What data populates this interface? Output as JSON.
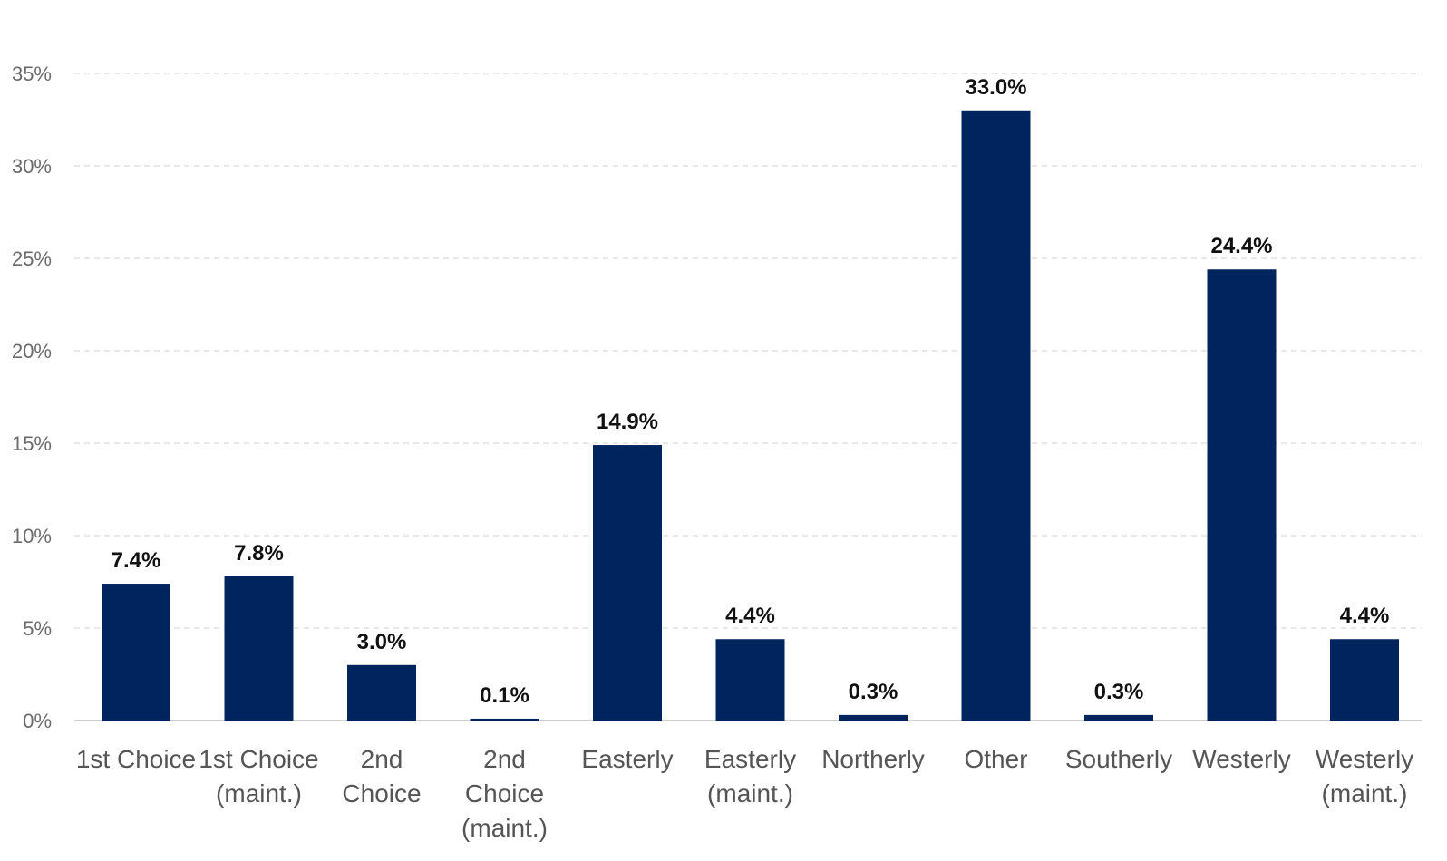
{
  "chart_data": {
    "type": "bar",
    "categories": [
      [
        "1st Choice"
      ],
      [
        "1st Choice",
        "(maint.)"
      ],
      [
        "2nd",
        "Choice"
      ],
      [
        "2nd",
        "Choice",
        "(maint.)"
      ],
      [
        "Easterly"
      ],
      [
        "Easterly",
        "(maint.)"
      ],
      [
        "Northerly"
      ],
      [
        "Other"
      ],
      [
        "Southerly"
      ],
      [
        "Westerly"
      ],
      [
        "Westerly",
        "(maint.)"
      ]
    ],
    "values": [
      7.4,
      7.8,
      3.0,
      0.1,
      14.9,
      4.4,
      0.3,
      33.0,
      0.3,
      24.4,
      4.4
    ],
    "data_labels": [
      "7.4%",
      "7.8%",
      "3.0%",
      "0.1%",
      "14.9%",
      "4.4%",
      "0.3%",
      "33.0%",
      "0.3%",
      "24.4%",
      "4.4%"
    ],
    "yticks": [
      0,
      5,
      10,
      15,
      20,
      25,
      30,
      35
    ],
    "ytick_labels": [
      "0%",
      "5%",
      "10%",
      "15%",
      "20%",
      "25%",
      "30%",
      "35%"
    ],
    "ylim": [
      0,
      35
    ],
    "grid": true,
    "legend": "none",
    "title": "",
    "xlabel": "",
    "ylabel": "",
    "bar_color": "#00245d"
  }
}
